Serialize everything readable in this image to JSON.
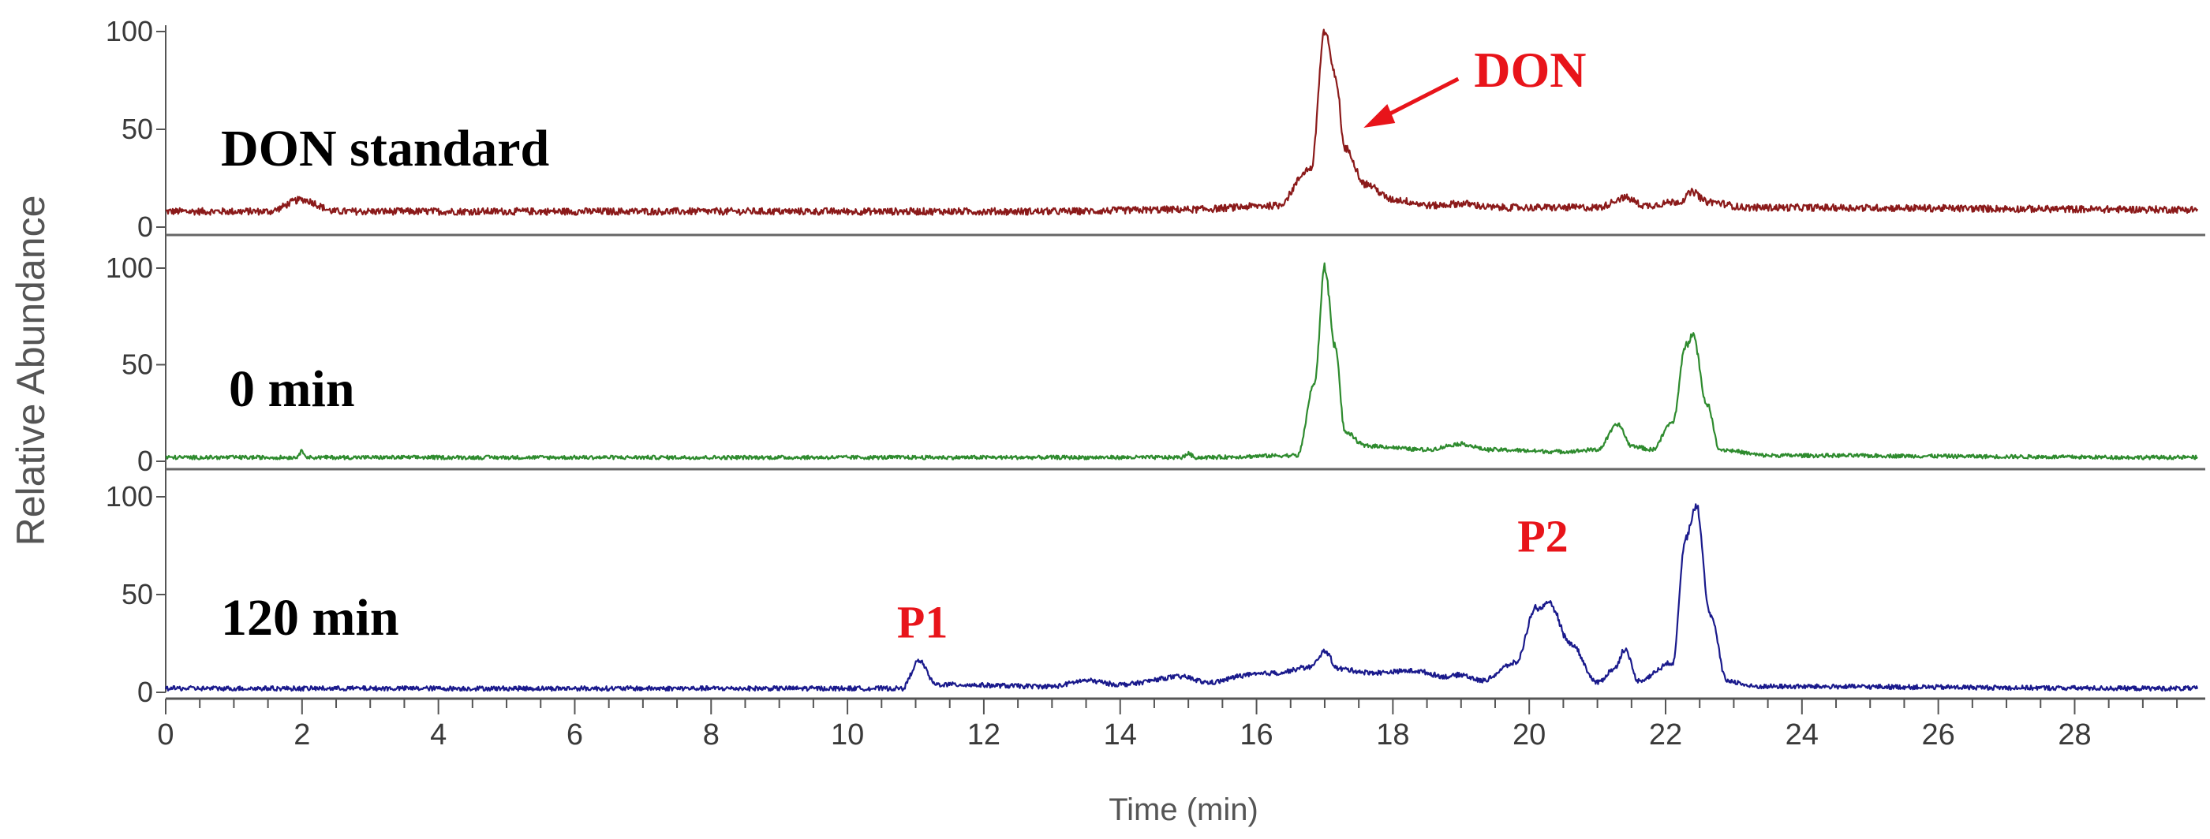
{
  "chart_data": {
    "type": "line",
    "xlabel": "Time (min)",
    "ylabel": "Relative Abundance",
    "xlim": [
      0,
      29.8
    ],
    "x_ticks": [
      0,
      2,
      4,
      6,
      8,
      10,
      12,
      14,
      16,
      18,
      20,
      22,
      24,
      26,
      28
    ],
    "x_tick_labels": [
      "0",
      "2",
      "4",
      "6",
      "8",
      "10",
      "12",
      "14",
      "16",
      "18",
      "20",
      "22",
      "24",
      "26",
      "28"
    ],
    "panels": [
      {
        "label": "DON standard",
        "color": "#8B1A1A",
        "ylim": [
          0,
          100
        ],
        "y_ticks": [
          0,
          50,
          100
        ],
        "y_tick_labels": [
          "0",
          "50",
          "100"
        ],
        "baseline": 8,
        "noise": 1.8,
        "points": [
          [
            0,
            8
          ],
          [
            1.5,
            8
          ],
          [
            2.0,
            14
          ],
          [
            2.5,
            8
          ],
          [
            13,
            8
          ],
          [
            15,
            9
          ],
          [
            16.3,
            11
          ],
          [
            16.8,
            30
          ],
          [
            17.0,
            100
          ],
          [
            17.15,
            78
          ],
          [
            17.3,
            40
          ],
          [
            17.6,
            22
          ],
          [
            18,
            14
          ],
          [
            18.6,
            11
          ],
          [
            19.0,
            12
          ],
          [
            19.5,
            10
          ],
          [
            21.0,
            10
          ],
          [
            21.4,
            15
          ],
          [
            21.7,
            11
          ],
          [
            22.2,
            13
          ],
          [
            22.4,
            18
          ],
          [
            22.6,
            13
          ],
          [
            23.2,
            10
          ],
          [
            29.8,
            9
          ]
        ],
        "annotations": [
          {
            "text": "DON",
            "x": 17.05,
            "y": 50,
            "color": "#E8141A"
          }
        ]
      },
      {
        "label": "0 min",
        "color": "#2E8B2E",
        "ylim": [
          0,
          100
        ],
        "y_ticks": [
          0,
          50,
          100
        ],
        "y_tick_labels": [
          "0",
          "50",
          "100"
        ],
        "baseline": 2,
        "noise": 1.0,
        "points": [
          [
            0,
            2
          ],
          [
            1.9,
            2
          ],
          [
            2.0,
            5
          ],
          [
            2.1,
            2
          ],
          [
            14.9,
            2
          ],
          [
            15.0,
            4
          ],
          [
            15.1,
            2
          ],
          [
            16.6,
            3
          ],
          [
            16.85,
            40
          ],
          [
            17.0,
            100
          ],
          [
            17.15,
            60
          ],
          [
            17.3,
            15
          ],
          [
            17.6,
            8
          ],
          [
            18.5,
            6
          ],
          [
            19.0,
            9
          ],
          [
            19.4,
            6
          ],
          [
            20.5,
            5
          ],
          [
            21.0,
            6
          ],
          [
            21.3,
            19
          ],
          [
            21.5,
            8
          ],
          [
            21.8,
            6
          ],
          [
            22.1,
            20
          ],
          [
            22.3,
            60
          ],
          [
            22.4,
            66
          ],
          [
            22.6,
            30
          ],
          [
            22.8,
            6
          ],
          [
            23.5,
            3
          ],
          [
            29.8,
            2
          ]
        ],
        "annotations": []
      },
      {
        "label": "120 min",
        "color": "#1A1A8C",
        "ylim": [
          0,
          100
        ],
        "y_ticks": [
          0,
          50,
          100
        ],
        "y_tick_labels": [
          "0",
          "50",
          "100"
        ],
        "baseline": 2,
        "noise": 1.2,
        "points": [
          [
            0,
            2
          ],
          [
            10.8,
            2
          ],
          [
            11.05,
            16
          ],
          [
            11.3,
            4
          ],
          [
            13.0,
            3
          ],
          [
            13.5,
            6
          ],
          [
            14.0,
            4
          ],
          [
            14.9,
            8
          ],
          [
            15.3,
            5
          ],
          [
            15.9,
            9
          ],
          [
            16.3,
            10
          ],
          [
            16.8,
            13
          ],
          [
            17.0,
            21
          ],
          [
            17.2,
            12
          ],
          [
            17.7,
            10
          ],
          [
            18.3,
            11
          ],
          [
            18.8,
            8
          ],
          [
            19.0,
            9
          ],
          [
            19.3,
            6
          ],
          [
            19.8,
            15
          ],
          [
            20.1,
            43
          ],
          [
            20.3,
            45
          ],
          [
            20.6,
            25
          ],
          [
            21.0,
            5
          ],
          [
            21.25,
            12
          ],
          [
            21.4,
            22
          ],
          [
            21.6,
            6
          ],
          [
            22.1,
            15
          ],
          [
            22.3,
            80
          ],
          [
            22.45,
            96
          ],
          [
            22.65,
            40
          ],
          [
            22.9,
            6
          ],
          [
            23.3,
            3
          ],
          [
            29.8,
            2
          ]
        ],
        "annotations": [
          {
            "text": "P1",
            "x": 11.1,
            "y": 28,
            "color": "#E8141A"
          },
          {
            "text": "P2",
            "x": 20.2,
            "y": 72,
            "color": "#E8141A"
          }
        ]
      }
    ]
  }
}
